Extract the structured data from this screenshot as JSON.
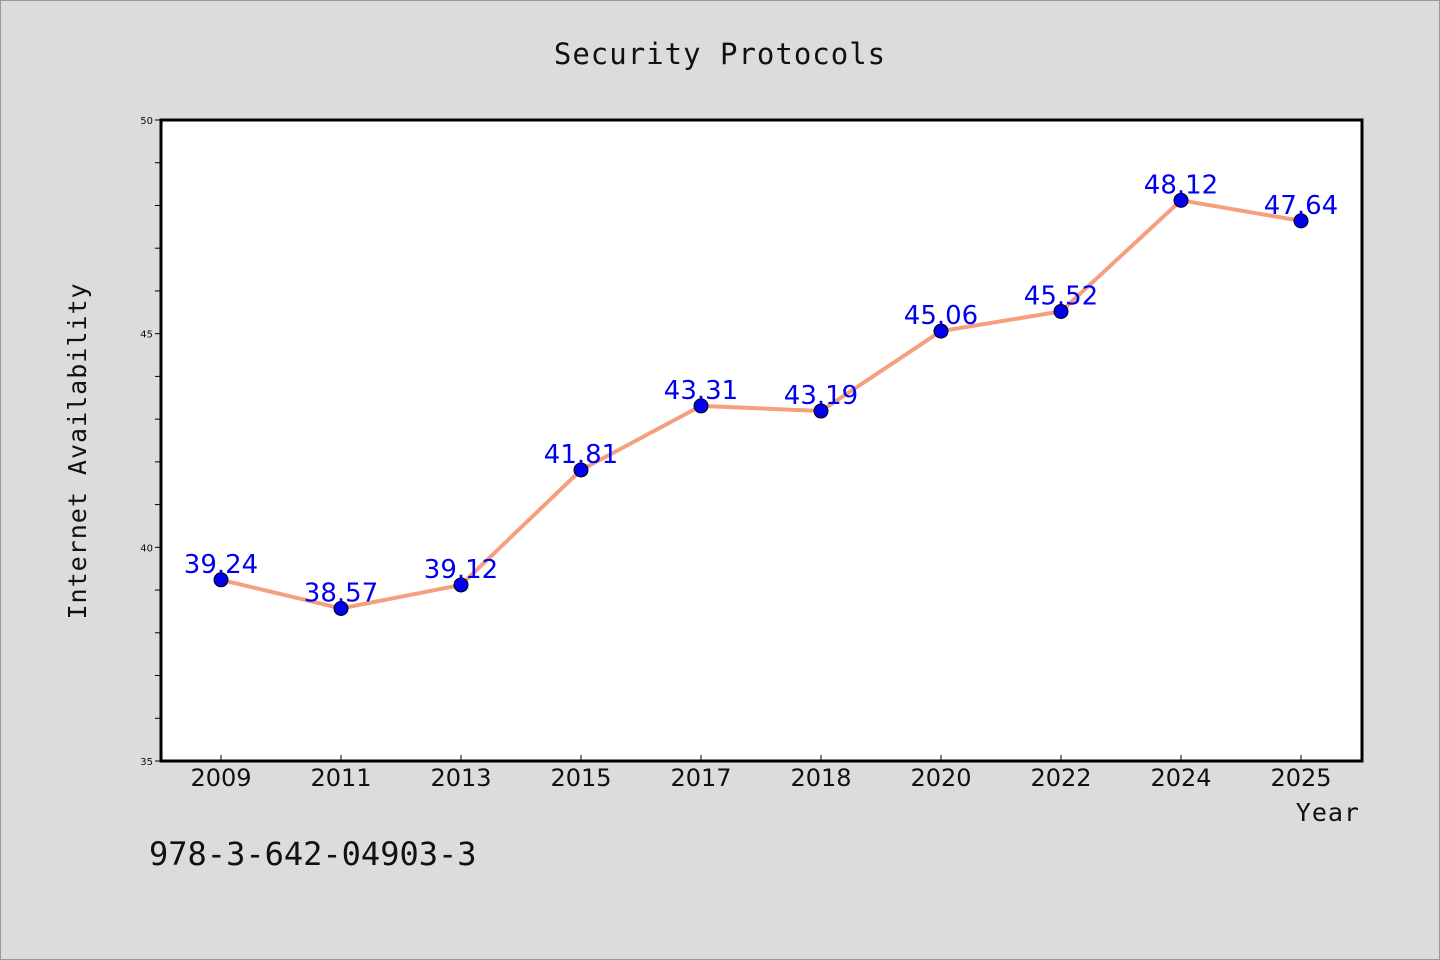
{
  "chart_data": {
    "type": "line",
    "title": "Security Protocols",
    "xlabel": "Year",
    "ylabel": "Internet Availability",
    "categories": [
      "2009",
      "2011",
      "2013",
      "2015",
      "2017",
      "2018",
      "2020",
      "2022",
      "2024",
      "2025"
    ],
    "series": [
      {
        "values": [
          39.24,
          38.57,
          39.12,
          41.81,
          43.31,
          43.19,
          45.06,
          45.52,
          48.12,
          47.64
        ]
      }
    ],
    "data_labels": [
      "39.24",
      "38.57",
      "39.12",
      "41.81",
      "43.31",
      "43.19",
      "45.06",
      "45.52",
      "48.12",
      "47.64"
    ],
    "ylim": [
      35,
      50
    ],
    "yticks": [
      "35",
      "40",
      "45",
      "50"
    ],
    "grid": false,
    "legend": "none",
    "colors": {
      "line": "#f4a07f",
      "marker": "#0000ee",
      "data_label": "#0000ee",
      "plot_background": "#ffffff",
      "figure_background": "#dcdcdc"
    }
  },
  "footnote": "978-3-642-04903-3"
}
